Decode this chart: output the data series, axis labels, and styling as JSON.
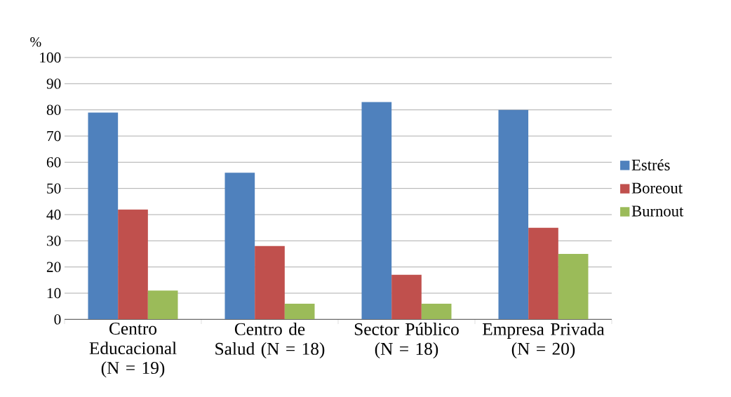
{
  "chart_data": {
    "type": "bar",
    "ylabel": "%",
    "categories": [
      "Centro Educacional (N = 19)",
      "Centro de Salud (N = 18)",
      "Sector Público (N = 18)",
      "Empresa Privada (N = 20)"
    ],
    "series": [
      {
        "name": "Estrés",
        "color": "#4f81bd",
        "values": [
          79,
          56,
          83,
          80
        ]
      },
      {
        "name": "Boreout",
        "color": "#c0504d",
        "values": [
          42,
          28,
          17,
          35
        ]
      },
      {
        "name": "Burnout",
        "color": "#9bbb59",
        "values": [
          11,
          6,
          6,
          25
        ]
      }
    ],
    "ylim": [
      0,
      100
    ],
    "yticks": [
      0,
      10,
      20,
      30,
      40,
      50,
      60,
      70,
      80,
      90,
      100
    ],
    "grid": "y",
    "legend": "right"
  }
}
